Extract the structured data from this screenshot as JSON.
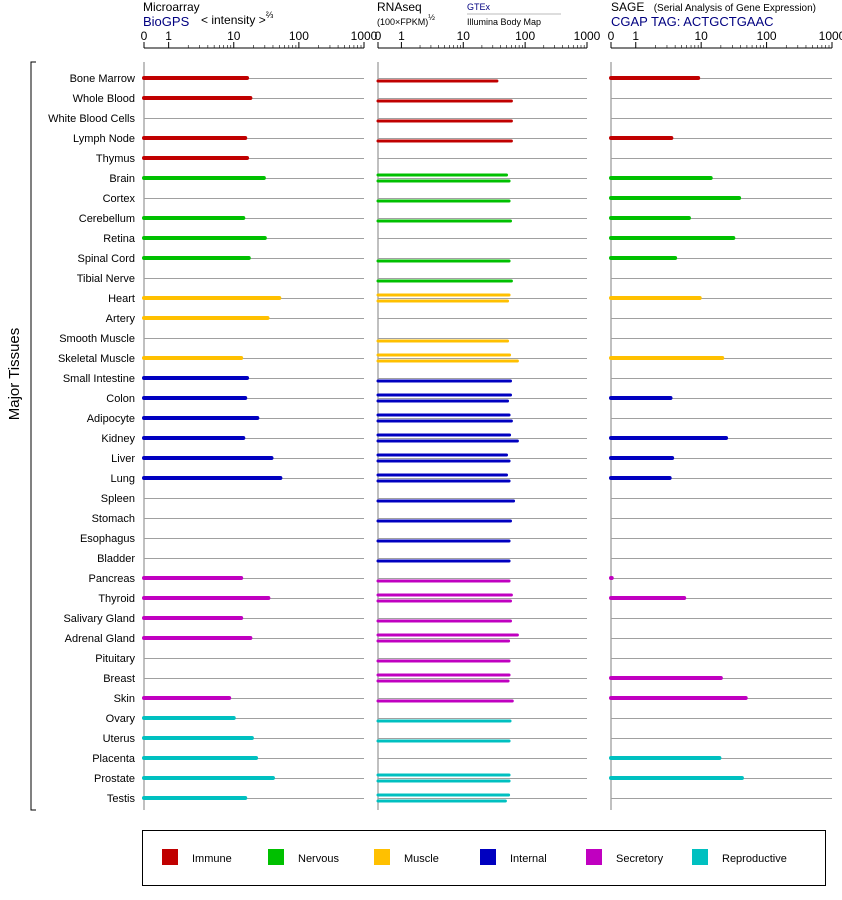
{
  "panels": [
    {
      "title": "Microarray",
      "subtitle": "BioGPS",
      "subtitle_color": "#000080",
      "extra": "< intensity >",
      "extra_sup": "⅔",
      "ticks": [
        "0",
        "1",
        "10",
        "100",
        "1000"
      ]
    },
    {
      "title": "RNAseq",
      "unit": "(100×FPKM)",
      "unit_sup": "½",
      "source1": "GTEx",
      "source1_color": "#000080",
      "source2": "Illumina Body Map",
      "ticks": [
        "0",
        "1",
        "10",
        "100",
        "1000"
      ]
    },
    {
      "title": "SAGE",
      "title_note": "(Serial Analysis of Gene Expression)",
      "subtitle": "CGAP  TAG: ACTGCTGAAC",
      "subtitle_color": "#000080",
      "ticks": [
        "0",
        "1",
        "10",
        "100",
        "1000"
      ]
    }
  ],
  "y_axis_label": "Major Tissues",
  "colors": {
    "Immune": "#c00000",
    "Nervous": "#00c000",
    "Muscle": "#ffc000",
    "Internal": "#0000c0",
    "Secretory": "#c000c0",
    "Reproductive": "#00c0c0"
  },
  "legend": [
    "Immune",
    "Nervous",
    "Muscle",
    "Internal",
    "Secretory",
    "Reproductive"
  ],
  "chart_data": {
    "type": "bar",
    "orientation": "horizontal",
    "x_scale": "log (0, 1, 10, 100, 1000)",
    "xlim": [
      0,
      1000
    ],
    "categories": [
      "Bone Marrow",
      "Whole Blood",
      "White Blood Cells",
      "Lymph Node",
      "Thymus",
      "Brain",
      "Cortex",
      "Cerebellum",
      "Retina",
      "Spinal Cord",
      "Tibial Nerve",
      "Heart",
      "Artery",
      "Smooth Muscle",
      "Skeletal Muscle",
      "Small Intestine",
      "Colon",
      "Adipocyte",
      "Kidney",
      "Liver",
      "Lung",
      "Spleen",
      "Stomach",
      "Esophagus",
      "Bladder",
      "Pancreas",
      "Thyroid",
      "Salivary Gland",
      "Adrenal Gland",
      "Pituitary",
      "Breast",
      "Skin",
      "Ovary",
      "Uterus",
      "Placenta",
      "Prostate",
      "Testis"
    ],
    "groups": [
      "Immune",
      "Immune",
      "Immune",
      "Immune",
      "Immune",
      "Nervous",
      "Nervous",
      "Nervous",
      "Nervous",
      "Nervous",
      "Nervous",
      "Muscle",
      "Muscle",
      "Muscle",
      "Muscle",
      "Internal",
      "Internal",
      "Internal",
      "Internal",
      "Internal",
      "Internal",
      "Internal",
      "Internal",
      "Internal",
      "Internal",
      "Secretory",
      "Secretory",
      "Secretory",
      "Secretory",
      "Secretory",
      "Secretory",
      "Secretory",
      "Reproductive",
      "Reproductive",
      "Reproductive",
      "Reproductive",
      "Reproductive"
    ],
    "series": [
      {
        "name": "Microarray",
        "values": [
          16,
          18,
          null,
          15,
          16,
          29,
          null,
          14,
          30,
          17,
          null,
          50,
          33,
          null,
          13,
          16,
          15,
          23,
          14,
          38,
          52,
          null,
          null,
          null,
          null,
          13,
          34,
          13,
          18,
          null,
          null,
          8.5,
          10,
          19,
          22,
          40,
          15
        ]
      },
      {
        "name": "RNAseq GTEx",
        "values": [
          null,
          null,
          null,
          null,
          null,
          50,
          null,
          null,
          null,
          null,
          null,
          55,
          null,
          null,
          56,
          null,
          58,
          55,
          56,
          50,
          50,
          null,
          null,
          null,
          null,
          null,
          60,
          null,
          75,
          null,
          55,
          null,
          null,
          null,
          null,
          55,
          54
        ]
      },
      {
        "name": "RNAseq Illumina Body Map",
        "values": [
          35,
          60,
          60,
          60,
          null,
          55,
          55,
          58,
          null,
          55,
          60,
          52,
          null,
          52,
          75,
          58,
          52,
          60,
          75,
          55,
          55,
          65,
          58,
          55,
          55,
          55,
          58,
          58,
          54,
          55,
          53,
          62,
          57,
          55,
          null,
          55,
          48
        ]
      },
      {
        "name": "SAGE",
        "values": [
          9,
          null,
          null,
          3.5,
          null,
          14,
          38,
          6.5,
          31,
          4,
          null,
          9.5,
          null,
          null,
          21,
          null,
          3.4,
          null,
          24,
          3.6,
          3.3,
          null,
          null,
          null,
          null,
          0.03,
          5.5,
          null,
          null,
          null,
          20,
          48,
          null,
          null,
          19,
          42,
          null
        ]
      }
    ]
  }
}
